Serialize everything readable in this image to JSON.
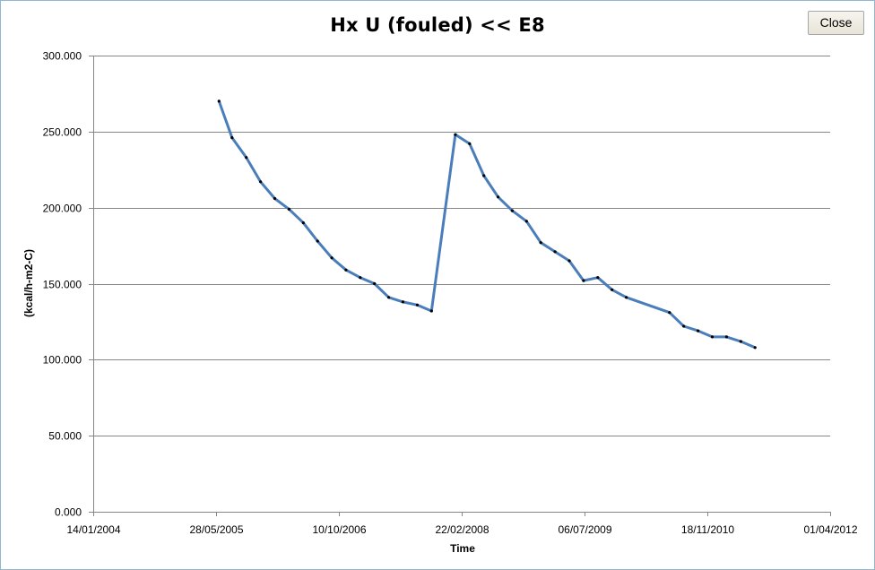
{
  "window": {
    "close_label": "Close"
  },
  "colors": {
    "line": "#4a7ebb",
    "marker": "#000000",
    "grid": "#868686",
    "axis": "#868686"
  },
  "chart_data": {
    "type": "line",
    "title": "Hx U (fouled) << E8",
    "xlabel": "Time",
    "ylabel": "(kcal/h-m2-C)",
    "x_is_date": true,
    "xlim": [
      "2004-01-14",
      "2012-04-01"
    ],
    "ylim": [
      0,
      300
    ],
    "x_ticks": [
      "2004-01-14",
      "2005-05-28",
      "2006-10-10",
      "2008-02-22",
      "2009-07-06",
      "2010-11-18",
      "2012-04-01"
    ],
    "x_tick_labels": [
      "14/01/2004",
      "28/05/2005",
      "10/10/2006",
      "22/02/2008",
      "06/07/2009",
      "18/11/2010",
      "01/04/2012"
    ],
    "y_ticks": [
      0,
      50,
      100,
      150,
      200,
      250,
      300
    ],
    "y_tick_labels": [
      "0.000",
      "50.000",
      "100.000",
      "150.000",
      "200.000",
      "250.000",
      "300.000"
    ],
    "grid": "horizontal",
    "legend": "none",
    "series": [
      {
        "points": [
          [
            "2005-06-09",
            270
          ],
          [
            "2005-08-01",
            246
          ],
          [
            "2005-09-28",
            233
          ],
          [
            "2005-11-25",
            217
          ],
          [
            "2006-01-22",
            206
          ],
          [
            "2006-03-21",
            199
          ],
          [
            "2006-05-18",
            190
          ],
          [
            "2006-07-15",
            178
          ],
          [
            "2006-09-11",
            167
          ],
          [
            "2006-11-08",
            159
          ],
          [
            "2007-01-05",
            154
          ],
          [
            "2007-03-04",
            150
          ],
          [
            "2007-05-01",
            141
          ],
          [
            "2007-06-28",
            138
          ],
          [
            "2007-08-25",
            136
          ],
          [
            "2007-10-22",
            132
          ],
          [
            "2008-01-27",
            248
          ],
          [
            "2008-03-25",
            242
          ],
          [
            "2008-05-22",
            221
          ],
          [
            "2008-07-19",
            207
          ],
          [
            "2008-09-15",
            198
          ],
          [
            "2008-11-12",
            191
          ],
          [
            "2009-01-09",
            177
          ],
          [
            "2009-03-08",
            171
          ],
          [
            "2009-05-05",
            165
          ],
          [
            "2009-07-02",
            152
          ],
          [
            "2009-08-29",
            154
          ],
          [
            "2009-10-26",
            146
          ],
          [
            "2009-12-23",
            141
          ],
          [
            "2010-06-17",
            131
          ],
          [
            "2010-08-14",
            122
          ],
          [
            "2010-10-11",
            119
          ],
          [
            "2010-12-08",
            115
          ],
          [
            "2011-02-04",
            115
          ],
          [
            "2011-04-03",
            112
          ],
          [
            "2011-05-31",
            108
          ]
        ]
      }
    ]
  }
}
